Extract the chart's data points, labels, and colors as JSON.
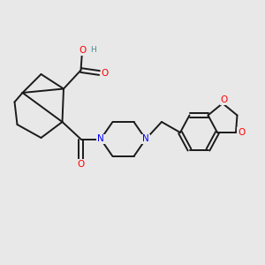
{
  "bg_color": "#e8e8e8",
  "bond_color": "#1a1a1a",
  "bond_width": 1.4,
  "atom_colors": {
    "O": "#ff0000",
    "N": "#0000ff",
    "H": "#4a8a8a",
    "C": "#1a1a1a"
  },
  "figsize": [
    3.0,
    3.0
  ],
  "dpi": 100
}
